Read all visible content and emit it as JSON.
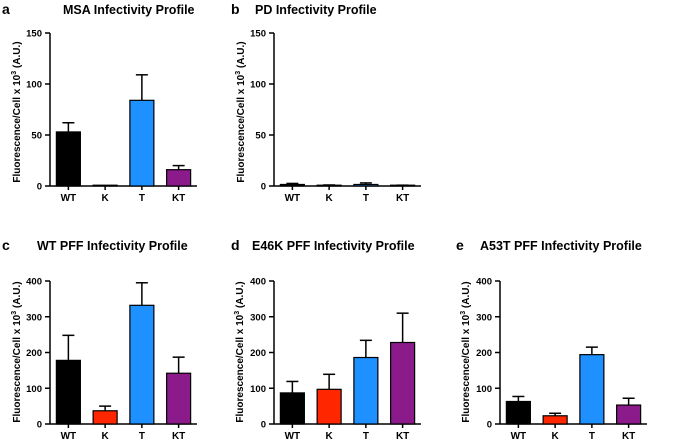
{
  "colors": {
    "WT": "#000000",
    "K": "#ff2600",
    "T": "#1e90ff",
    "KT": "#8b1a8b",
    "axis": "#000000"
  },
  "chart_data": [
    {
      "panel": "a",
      "title": "MSA Infectivity Profile",
      "type": "bar",
      "categories": [
        "WT",
        "K",
        "T",
        "KT"
      ],
      "values": [
        53,
        0.5,
        84,
        16
      ],
      "errors": [
        9,
        0,
        25,
        4
      ],
      "ylabel": "Fluorescence/Cell x 10",
      "ylabel_sup": "3",
      "ylabel_unit": " (A.U.)",
      "ylim": [
        0,
        150
      ],
      "yticks": [
        "0",
        "50",
        "100",
        "150"
      ]
    },
    {
      "panel": "b",
      "title": "PD Infectivity Profile",
      "type": "bar",
      "categories": [
        "WT",
        "K",
        "T",
        "KT"
      ],
      "values": [
        1.5,
        0.5,
        1.5,
        0.5
      ],
      "errors": [
        1,
        0.5,
        1.5,
        0.3
      ],
      "ylabel": "Fluorescence/Cell x 10",
      "ylabel_sup": "3",
      "ylabel_unit": " (A.U.)",
      "ylim": [
        0,
        150
      ],
      "yticks": [
        "0",
        "50",
        "100",
        "150"
      ]
    },
    {
      "panel": "c",
      "title": "WT PFF Infectivity Profile",
      "type": "bar",
      "categories": [
        "WT",
        "K",
        "T",
        "KT"
      ],
      "values": [
        178,
        37,
        332,
        142
      ],
      "errors": [
        70,
        13,
        63,
        45
      ],
      "ylabel": "Fluorescence/Cell x 10",
      "ylabel_sup": "3",
      "ylabel_unit": " (A.U.)",
      "ylim": [
        0,
        400
      ],
      "yticks": [
        "0",
        "100",
        "200",
        "300",
        "400"
      ]
    },
    {
      "panel": "d",
      "title": "E46K PFF Infectivity Profile",
      "type": "bar",
      "categories": [
        "WT",
        "K",
        "T",
        "KT"
      ],
      "values": [
        87,
        97,
        186,
        228
      ],
      "errors": [
        32,
        42,
        48,
        82
      ],
      "ylabel": "Fluorescence/Cell x 10",
      "ylabel_sup": "3",
      "ylabel_unit": " (A.U.)",
      "ylim": [
        0,
        400
      ],
      "yticks": [
        "0",
        "100",
        "200",
        "300",
        "400"
      ]
    },
    {
      "panel": "e",
      "title": "A53T PFF Infectivity Profile",
      "type": "bar",
      "categories": [
        "WT",
        "K",
        "T",
        "KT"
      ],
      "values": [
        63,
        23,
        194,
        53
      ],
      "errors": [
        14,
        7,
        21,
        19
      ],
      "ylabel": "Fluorescence/Cell x 10",
      "ylabel_sup": "3",
      "ylabel_unit": " (A.U.)",
      "ylim": [
        0,
        400
      ],
      "yticks": [
        "0",
        "100",
        "200",
        "300",
        "400"
      ]
    }
  ]
}
